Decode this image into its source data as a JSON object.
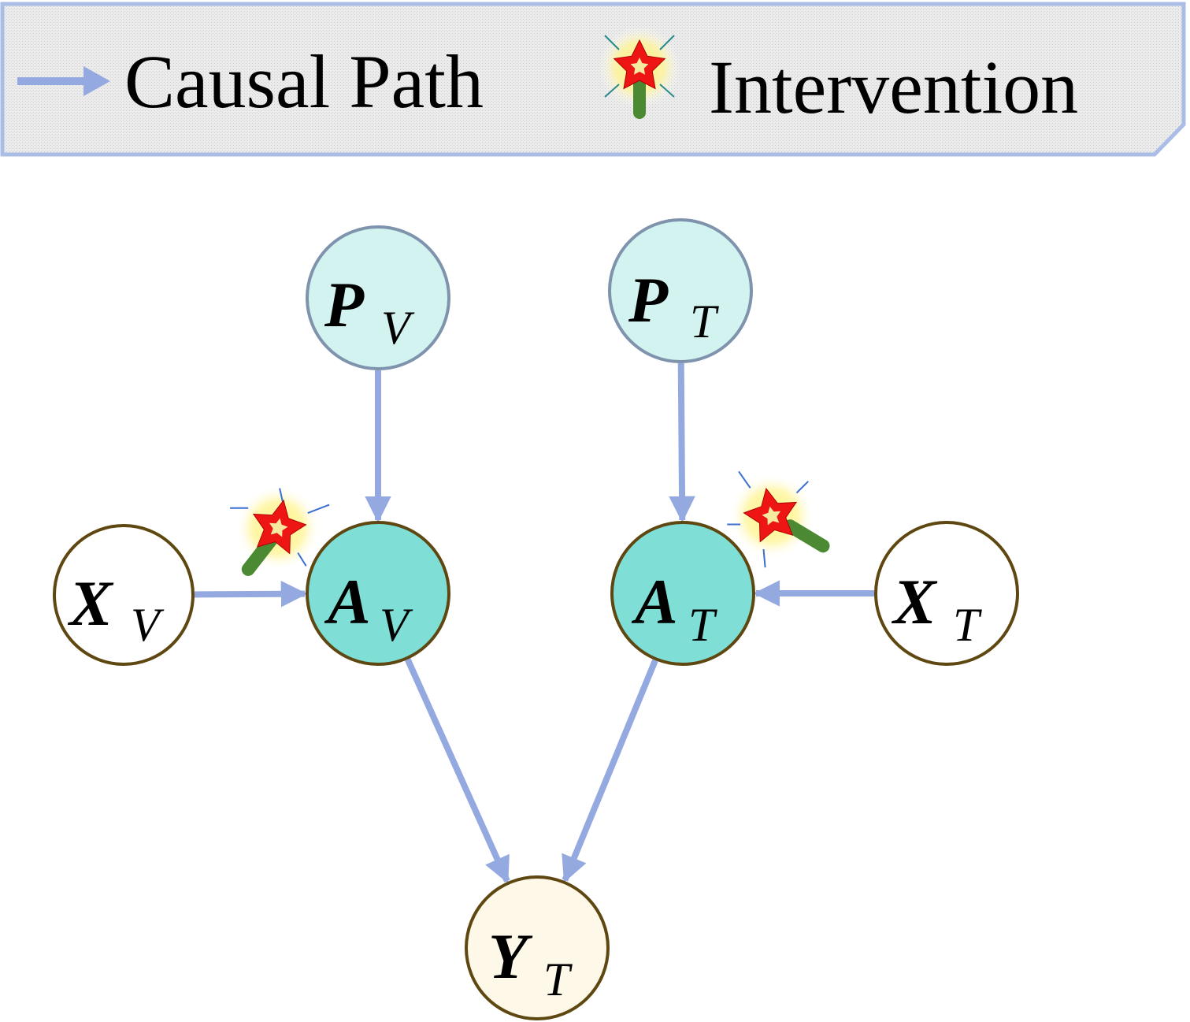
{
  "legend": {
    "causal_path_label": "Causal Path",
    "intervention_label": "Intervention"
  },
  "colors": {
    "arrow": "#93a9e0",
    "legend_border": "#a9bde6",
    "legend_fill": "#e2e2e2",
    "prompt_fill": "#d3f3f0",
    "prompt_stroke": "#7f93ad",
    "attention_fill": "#7fdfd6",
    "input_fill": "#ffffff",
    "output_fill": "#fdf8e7",
    "node_stroke": "#5e4710",
    "star_red": "#ee1515",
    "star_center": "#f7e9a0",
    "wand_green": "#4b8a32"
  },
  "nodes": {
    "pv": {
      "main": "P",
      "sub": "V"
    },
    "pt": {
      "main": "P",
      "sub": "T"
    },
    "xv": {
      "main": "X",
      "sub": "V"
    },
    "av": {
      "main": "A",
      "sub": "V"
    },
    "at": {
      "main": "A",
      "sub": "T"
    },
    "xt": {
      "main": "X",
      "sub": "T"
    },
    "yt": {
      "main": "Y",
      "sub": "T"
    }
  },
  "edges": [
    {
      "from": "pv",
      "to": "av"
    },
    {
      "from": "pt",
      "to": "at"
    },
    {
      "from": "xv",
      "to": "av"
    },
    {
      "from": "xt",
      "to": "at"
    },
    {
      "from": "av",
      "to": "yt"
    },
    {
      "from": "at",
      "to": "yt"
    }
  ],
  "interventions": [
    "av",
    "at"
  ]
}
